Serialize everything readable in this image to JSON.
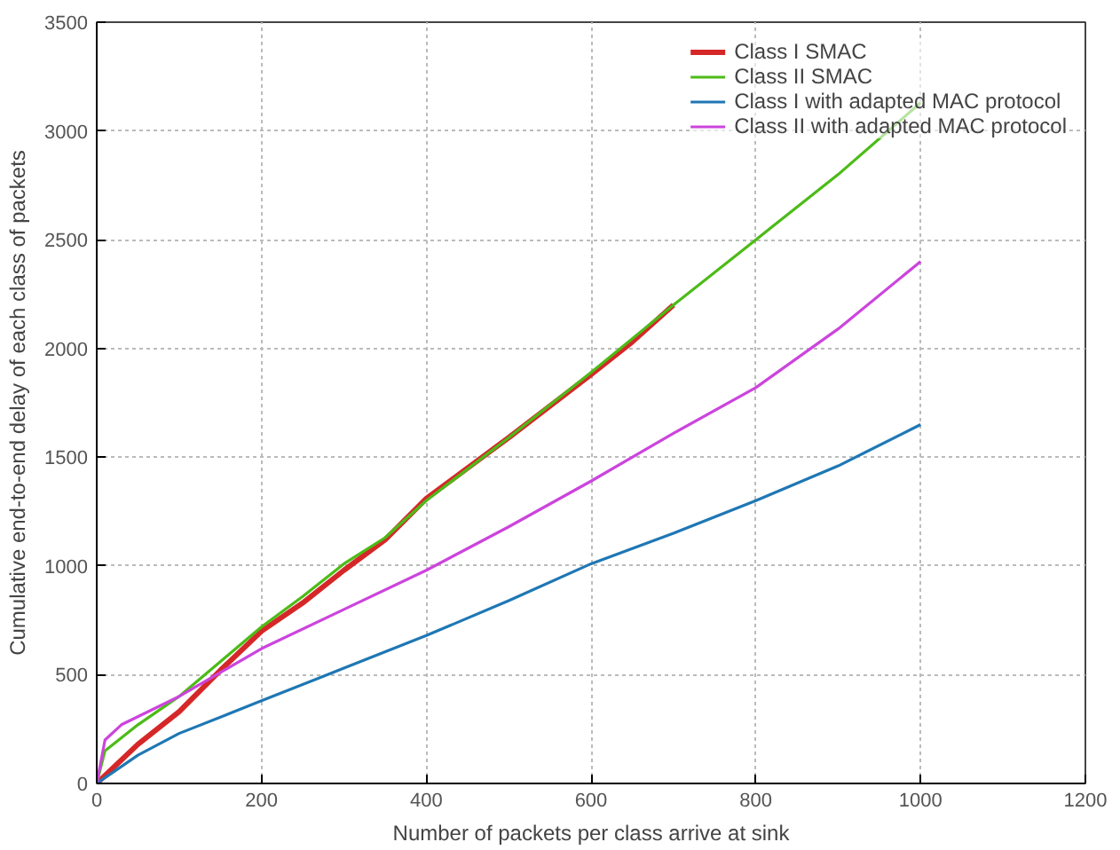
{
  "chart_data": {
    "type": "line",
    "xlabel": "Number of packets per class arrive at sink",
    "ylabel": "Cumulative end-to-end delay of each class of packets",
    "xlim": [
      0,
      1200
    ],
    "ylim": [
      0,
      3500
    ],
    "xticks": [
      0,
      200,
      400,
      600,
      800,
      1000,
      1200
    ],
    "yticks": [
      0,
      500,
      1000,
      1500,
      2000,
      2500,
      3000,
      3500
    ],
    "grid": true,
    "legend": "top right",
    "marker": "none",
    "line_style": "solid",
    "series": [
      {
        "name": "Class I SMAC",
        "color": "#d62728",
        "x": [
          0,
          50,
          100,
          150,
          200,
          250,
          300,
          350,
          400,
          500,
          600,
          650,
          700
        ],
        "values": [
          0,
          180,
          330,
          520,
          700,
          830,
          980,
          1120,
          1310,
          1590,
          1880,
          2030,
          2200
        ]
      },
      {
        "name": "Class II SMAC",
        "color": "#4cbb17",
        "x": [
          0,
          10,
          50,
          100,
          150,
          200,
          250,
          300,
          350,
          400,
          500,
          600,
          700,
          800,
          900,
          1000
        ],
        "values": [
          0,
          150,
          270,
          400,
          560,
          720,
          860,
          1010,
          1130,
          1300,
          1590,
          1890,
          2200,
          2500,
          2800,
          3130
        ]
      },
      {
        "name": "Class I with adapted MAC protocol",
        "color": "#1f77b4",
        "x": [
          0,
          50,
          100,
          200,
          300,
          400,
          500,
          600,
          700,
          800,
          900,
          1000
        ],
        "values": [
          0,
          130,
          230,
          380,
          530,
          680,
          840,
          1010,
          1150,
          1300,
          1460,
          1650
        ]
      },
      {
        "name": "Class II with adapted MAC protocol",
        "color": "#cc44dd",
        "x": [
          0,
          10,
          30,
          100,
          200,
          300,
          400,
          500,
          600,
          700,
          800,
          900,
          1000
        ],
        "values": [
          0,
          200,
          270,
          400,
          620,
          800,
          980,
          1180,
          1390,
          1610,
          1820,
          2090,
          2400
        ]
      }
    ]
  }
}
